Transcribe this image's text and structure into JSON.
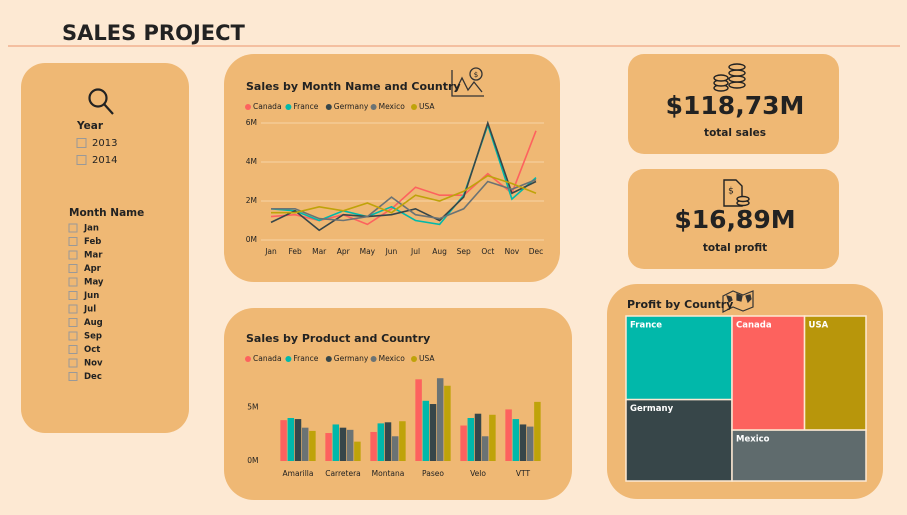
{
  "header": {
    "title": "SALES PROJECT"
  },
  "slicers": {
    "year": {
      "title": "Year",
      "options": [
        "2013",
        "2014"
      ]
    },
    "month": {
      "title": "Month Name",
      "options": [
        "Jan",
        "Feb",
        "Mar",
        "Apr",
        "May",
        "Jun",
        "Jul",
        "Aug",
        "Sep",
        "Oct",
        "Nov",
        "Dec"
      ]
    }
  },
  "kpis": [
    {
      "value": "$118,73M",
      "label": "total sales"
    },
    {
      "value": "$16,89M",
      "label": "total profit"
    }
  ],
  "chart_data": [
    {
      "type": "line",
      "title": "Sales by Month Name and Country",
      "categories": [
        "Jan",
        "Feb",
        "Mar",
        "Apr",
        "May",
        "Jun",
        "Jul",
        "Aug",
        "Sep",
        "Oct",
        "Nov",
        "Dec"
      ],
      "series": [
        {
          "name": "Canada",
          "color": "#fd625e",
          "values": [
            1.2,
            1.3,
            1.0,
            1.3,
            0.8,
            1.6,
            2.7,
            2.3,
            2.3,
            3.4,
            2.4,
            5.6
          ]
        },
        {
          "name": "France",
          "color": "#01b8aa",
          "values": [
            1.6,
            1.5,
            1.0,
            1.5,
            1.2,
            1.7,
            1.0,
            0.8,
            2.3,
            5.9,
            2.1,
            3.2
          ]
        },
        {
          "name": "Germany",
          "color": "#374649",
          "values": [
            0.9,
            1.5,
            0.5,
            1.3,
            1.2,
            1.3,
            1.6,
            1.0,
            2.2,
            6.0,
            2.4,
            3.0
          ]
        },
        {
          "name": "Mexico",
          "color": "#6b7374",
          "values": [
            1.6,
            1.6,
            1.1,
            1.0,
            1.2,
            2.2,
            1.3,
            1.1,
            1.6,
            3.0,
            2.6,
            3.1
          ]
        },
        {
          "name": "USA",
          "color": "#bfa30a",
          "values": [
            1.4,
            1.4,
            1.7,
            1.5,
            1.9,
            1.4,
            2.3,
            2.0,
            2.5,
            3.3,
            2.9,
            2.4
          ]
        }
      ],
      "ylim": [
        0,
        6.2
      ],
      "yticks": [
        {
          "value": 0,
          "label": "0M"
        },
        {
          "value": 2,
          "label": "2M"
        },
        {
          "value": 4,
          "label": "4M"
        },
        {
          "value": 6,
          "label": "6M"
        }
      ],
      "grid": true
    },
    {
      "type": "bar",
      "title": "Sales by Product and Country",
      "categories": [
        "Amarilla",
        "Carretera",
        "Montana",
        "Paseo",
        "Velo",
        "VTT"
      ],
      "series": [
        {
          "name": "Canada",
          "color": "#fd625e",
          "values": [
            3.8,
            2.6,
            2.7,
            7.6,
            3.3,
            4.8
          ]
        },
        {
          "name": "France",
          "color": "#01b8aa",
          "values": [
            4.0,
            3.4,
            3.5,
            5.6,
            4.0,
            3.9
          ]
        },
        {
          "name": "Germany",
          "color": "#374649",
          "values": [
            3.9,
            3.1,
            3.6,
            5.3,
            4.4,
            3.4
          ]
        },
        {
          "name": "Mexico",
          "color": "#6b7374",
          "values": [
            3.1,
            2.9,
            2.3,
            7.7,
            2.3,
            3.2
          ]
        },
        {
          "name": "USA",
          "color": "#bfa30a",
          "values": [
            2.8,
            1.8,
            3.7,
            7.0,
            4.3,
            5.5
          ]
        }
      ],
      "ylim": [
        0,
        8
      ],
      "yticks": [
        {
          "value": 0,
          "label": "0M"
        },
        {
          "value": 5,
          "label": "5M"
        }
      ],
      "grid": false
    },
    {
      "type": "treemap",
      "title": "Profit by Country",
      "categories": [
        "France",
        "Germany",
        "Canada",
        "USA",
        "Mexico"
      ],
      "values": [
        3.78,
        3.68,
        3.53,
        2.99,
        2.91
      ],
      "colors": [
        "#01b8aa",
        "#374649",
        "#fd625e",
        "#b8960b",
        "#5f6b6d"
      ]
    }
  ]
}
